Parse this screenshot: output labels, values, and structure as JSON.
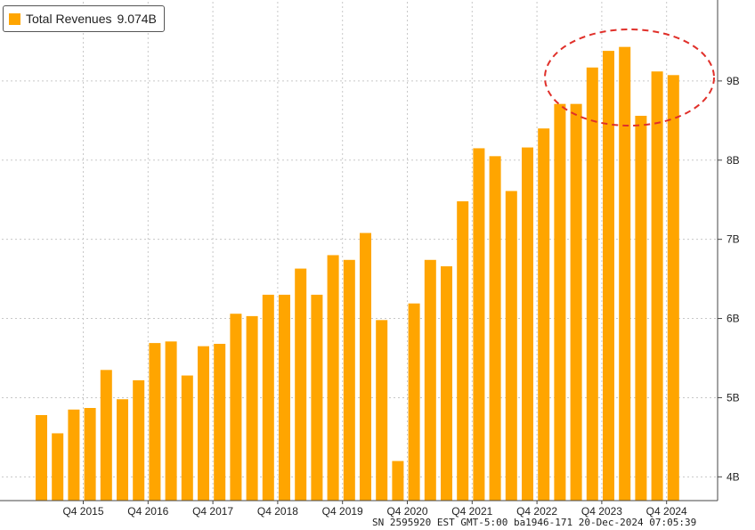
{
  "legend": {
    "label": "Total Revenues",
    "value": "9.074B"
  },
  "footer": "SN 2595920 EST  GMT-5:00 ba1946-171 20-Dec-2024 07:05:39",
  "colors": {
    "bar": "#FFA500",
    "grid": "#c8c8c8",
    "annotation": "#e0302a"
  },
  "chart_data": {
    "type": "bar",
    "ylim": [
      3.7,
      10.0
    ],
    "yticks": [
      {
        "value": 4,
        "label": "4B"
      },
      {
        "value": 5,
        "label": "5B"
      },
      {
        "value": 6,
        "label": "6B"
      },
      {
        "value": 7,
        "label": "7B"
      },
      {
        "value": 8,
        "label": "8B"
      },
      {
        "value": 9,
        "label": "9B"
      }
    ],
    "xtick_labels": [
      {
        "index": 3,
        "label": "Q4 2015"
      },
      {
        "index": 7,
        "label": "Q4 2016"
      },
      {
        "index": 11,
        "label": "Q4 2017"
      },
      {
        "index": 15,
        "label": "Q4 2018"
      },
      {
        "index": 19,
        "label": "Q4 2019"
      },
      {
        "index": 23,
        "label": "Q4 2020"
      },
      {
        "index": 27,
        "label": "Q4 2021"
      },
      {
        "index": 31,
        "label": "Q4 2022"
      },
      {
        "index": 35,
        "label": "Q4 2023"
      },
      {
        "index": 39,
        "label": "Q4 2024"
      }
    ],
    "values": [
      4.78,
      4.55,
      4.85,
      4.87,
      5.35,
      4.98,
      5.22,
      5.69,
      5.71,
      5.28,
      5.65,
      5.68,
      6.06,
      6.03,
      6.3,
      6.3,
      6.63,
      6.3,
      6.8,
      6.74,
      7.08,
      5.98,
      4.2,
      6.19,
      6.74,
      6.66,
      7.48,
      8.15,
      8.05,
      7.61,
      8.16,
      8.4,
      8.71,
      8.71,
      9.17,
      9.38,
      9.43,
      8.56,
      9.12,
      9.074
    ],
    "annotation": "highlight-circle-last-quarters",
    "grid": true,
    "legend_position": "top-left"
  }
}
